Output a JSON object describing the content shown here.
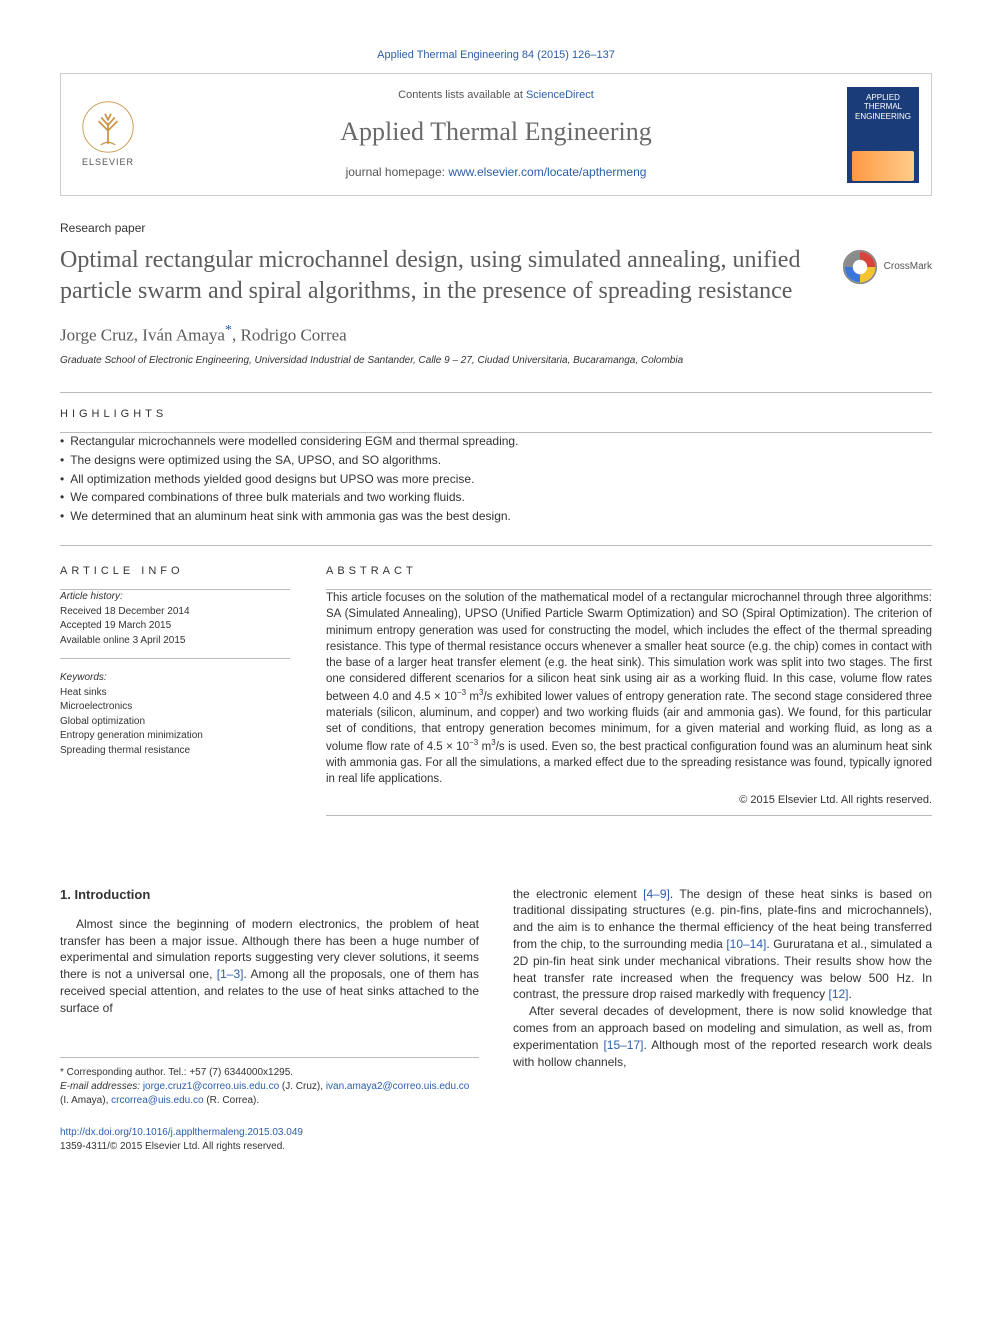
{
  "citation_top": "Applied Thermal Engineering 84 (2015) 126–137",
  "header": {
    "contents_prefix": "Contents lists available at ",
    "contents_link": "ScienceDirect",
    "journal_name": "Applied Thermal Engineering",
    "homepage_prefix": "journal homepage: ",
    "homepage_url": "www.elsevier.com/locate/apthermeng",
    "elsevier_word": "ELSEVIER",
    "cover_line1": "APPLIED",
    "cover_line2": "THERMAL",
    "cover_line3": "ENGINEERING"
  },
  "paper_type": "Research paper",
  "title": "Optimal rectangular microchannel design, using simulated annealing, unified particle swarm and spiral algorithms, in the presence of spreading resistance",
  "crossmark_label": "CrossMark",
  "authors_html": "Jorge Cruz, Iván Amaya<sup class=\"star-sup\">*</sup>, Rodrigo Correa",
  "affiliation": "Graduate School of Electronic Engineering, Universidad Industrial de Santander, Calle 9 – 27, Ciudad Universitaria, Bucaramanga, Colombia",
  "highlights_heading": "HIGHLIGHTS",
  "highlights": [
    "Rectangular microchannels were modelled considering EGM and thermal spreading.",
    "The designs were optimized using the SA, UPSO, and SO algorithms.",
    "All optimization methods yielded good designs but UPSO was more precise.",
    "We compared combinations of three bulk materials and two working fluids.",
    "We determined that an aluminum heat sink with ammonia gas was the best design."
  ],
  "article_info_heading": "ARTICLE INFO",
  "article_history_label": "Article history:",
  "received": "Received 18 December 2014",
  "accepted": "Accepted 19 March 2015",
  "online": "Available online 3 April 2015",
  "keywords_label": "Keywords:",
  "keywords": [
    "Heat sinks",
    "Microelectronics",
    "Global optimization",
    "Entropy generation minimization",
    "Spreading thermal resistance"
  ],
  "abstract_heading": "ABSTRACT",
  "abstract_html": "This article focuses on the solution of the mathematical model of a rectangular microchannel through three algorithms: SA (Simulated Annealing), UPSO (Unified Particle Swarm Optimization) and SO (Spiral Optimization). The criterion of minimum entropy generation was used for constructing the model, which includes the effect of the thermal spreading resistance. This type of thermal resistance occurs whenever a smaller heat source (e.g. the chip) comes in contact with the base of a larger heat transfer element (e.g. the heat sink). This simulation work was split into two stages. The first one considered different scenarios for a silicon heat sink using air as a working fluid. In this case, volume flow rates between 4.0 and 4.5 × 10<span class=\"sup3\">−3</span> m<span class=\"sup3\">3</span>/s exhibited lower values of entropy generation rate. The second stage considered three materials (silicon, aluminum, and copper) and two working fluids (air and ammonia gas). We found, for this particular set of conditions, that entropy generation becomes minimum, for a given material and working fluid, as long as a volume flow rate of 4.5 × 10<span class=\"sup3\">−3</span> m<span class=\"sup3\">3</span>/s is used. Even so, the best practical configuration found was an aluminum heat sink with ammonia gas. For all the simulations, a marked effect due to the spreading resistance was found, typically ignored in real life applications.",
  "copyright_line": "© 2015 Elsevier Ltd. All rights reserved.",
  "intro_heading": "1.  Introduction",
  "intro_left_html": "Almost since the beginning of modern electronics, the problem of heat transfer has been a major issue. Although there has been a huge number of experimental and simulation reports suggesting very clever solutions, it seems there is not a universal one, <a href=\"#\">[1–3]</a>. Among all the proposals, one of them has received special attention, and relates to the use of heat sinks attached to the surface of",
  "intro_right_p1_html": "the electronic element <a href=\"#\">[4–9]</a>. The design of these heat sinks is based on traditional dissipating structures (e.g. pin-fins, plate-fins and microchannels), and the aim is to enhance the thermal efficiency of the heat being transferred from the chip, to the surrounding media <a href=\"#\">[10–14]</a>. Gururatana et al., simulated a 2D pin-fin heat sink under mechanical vibrations. Their results show how the heat transfer rate increased when the frequency was below 500 Hz. In contrast, the pressure drop raised markedly with frequency <a href=\"#\">[12]</a>.",
  "intro_right_p2_html": "After several decades of development, there is now solid knowledge that comes from an approach based on modeling and simulation, as well as, from experimentation <a href=\"#\">[15–17]</a>. Although most of the reported research work deals with hollow channels,",
  "footnotes": {
    "corresp": "* Corresponding author. Tel.: +57 (7) 6344000x1295.",
    "email_label": "E-mail addresses:",
    "e1_link_pre": " ",
    "e1_name": "(J. Cruz), ",
    "e1_email": "jorge.cruz1@correo.uis.edu.co",
    "e2_email": "ivan.amaya2@correo.uis.edu.co",
    "e2_name": "(I. Amaya), ",
    "e3_email": "crcorrea@uis.edu.co",
    "e3_name": "(R. Correa)."
  },
  "footer": {
    "doi": "http://dx.doi.org/10.1016/j.applthermaleng.2015.03.049",
    "issn": "1359-4311/© 2015 Elsevier Ltd. All rights reserved."
  },
  "colors": {
    "link": "#2b5eaa",
    "heading_gray": "#5c5c5c",
    "rule": "#bbbbbb",
    "cover_bg": "#1a3d7a"
  }
}
